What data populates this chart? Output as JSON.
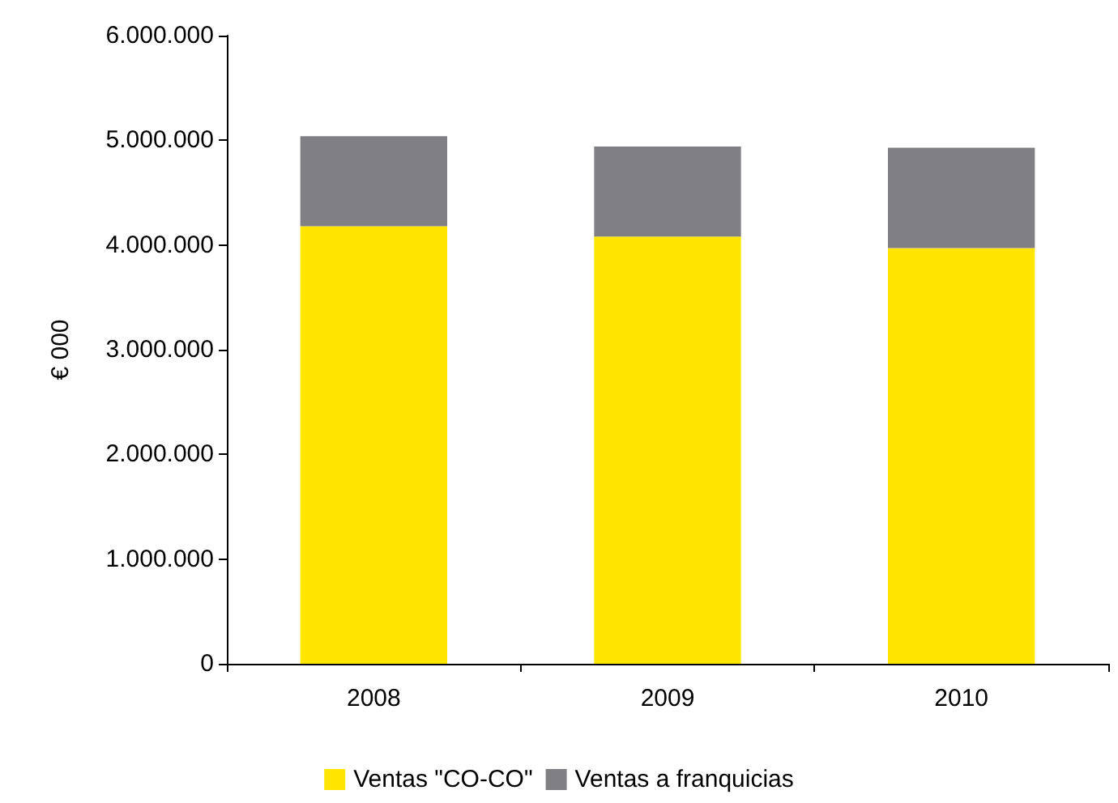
{
  "chart_data": {
    "type": "bar",
    "stacked": true,
    "ylabel": "€ 000",
    "categories": [
      "2008",
      "2009",
      "2010"
    ],
    "series": [
      {
        "name": "Ventas \"CO-CO\"",
        "color": "#ffe500",
        "values": [
          4180000,
          4080000,
          3970000
        ]
      },
      {
        "name": "Ventas a franquicias",
        "color": "#807f83",
        "values": [
          860000,
          860000,
          960000
        ]
      }
    ],
    "ylim": [
      0,
      6000000
    ],
    "yticks": [
      {
        "value": 0,
        "label": "0"
      },
      {
        "value": 1000000,
        "label": "1.000.000"
      },
      {
        "value": 2000000,
        "label": "2.000.000"
      },
      {
        "value": 3000000,
        "label": "3.000.000"
      },
      {
        "value": 4000000,
        "label": "4.000.000"
      },
      {
        "value": 5000000,
        "label": "5.000.000"
      },
      {
        "value": 6000000,
        "label": "6.000.000"
      }
    ],
    "grid": false,
    "legend": "bottom"
  }
}
